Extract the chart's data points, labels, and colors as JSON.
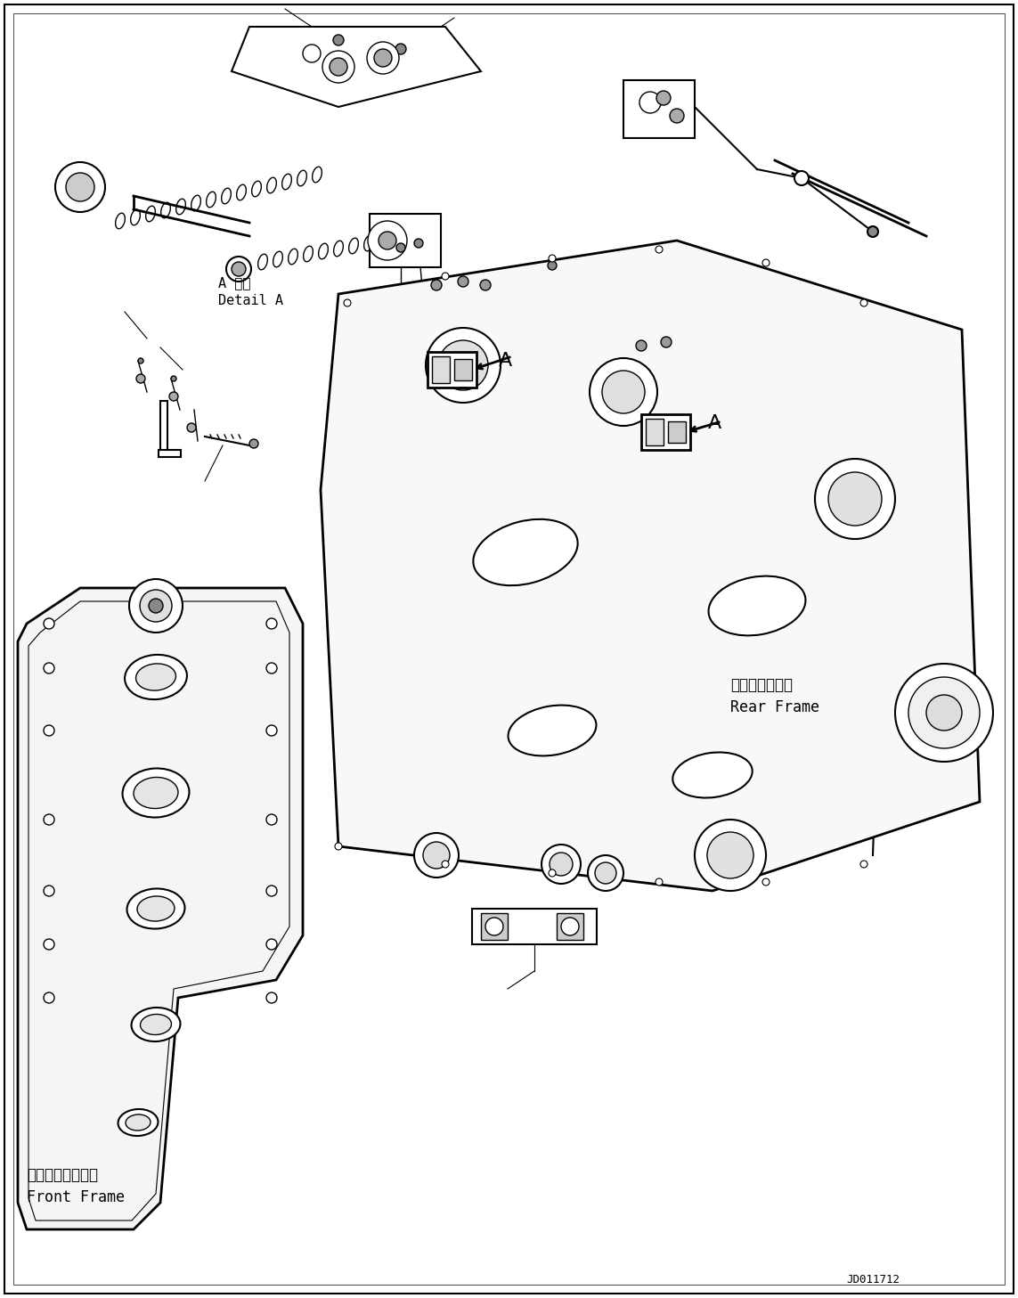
{
  "background_color": "#ffffff",
  "line_color": "#000000",
  "text_color": "#000000",
  "title": "",
  "part_code": "JD011712",
  "labels": {
    "detail_a_jp": "A 詳細",
    "detail_a_en": "Detail A",
    "front_frame_jp": "フロントフレーム",
    "front_frame_en": "Front Frame",
    "rear_frame_jp": "リヤーフレーム",
    "rear_frame_en": "Rear Frame",
    "label_a": "A"
  },
  "figsize": [
    11.43,
    14.57
  ],
  "dpi": 100
}
